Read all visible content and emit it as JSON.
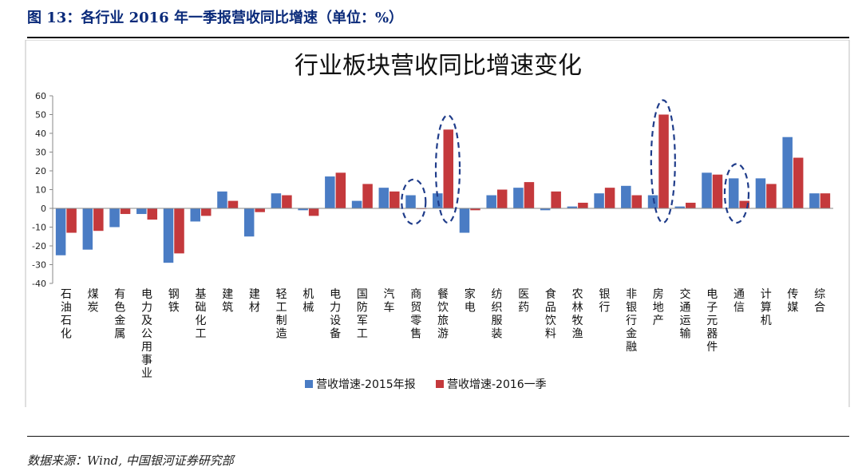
{
  "figure": {
    "caption": "图 13：各行业 2016 年一季报营收同比增速（单位：%）",
    "source": "数据来源：Wind, 中国银河证券研究部"
  },
  "chart_data": {
    "type": "bar",
    "title": "行业板块营收同比增速变化",
    "xlabel": "",
    "ylabel": "",
    "ylim": [
      -40,
      60
    ],
    "yticks": [
      60,
      50,
      40,
      30,
      20,
      10,
      0,
      -10,
      -20,
      -30,
      -40
    ],
    "grid": false,
    "legend_position": "bottom",
    "categories": [
      "石油石化",
      "煤炭",
      "有色金属",
      "电力及公用事业",
      "钢铁",
      "基础化工",
      "建筑",
      "建材",
      "轻工制造",
      "机械",
      "电力设备",
      "国防军工",
      "汽车",
      "商贸零售",
      "餐饮旅游",
      "家电",
      "纺织服装",
      "医药",
      "食品饮料",
      "农林牧渔",
      "银行",
      "非银行金融",
      "房地产",
      "交通运输",
      "电子元器件",
      "通信",
      "计算机",
      "传媒",
      "综合"
    ],
    "series": [
      {
        "name": "营收增速-2015年报",
        "color": "#4a7cc4",
        "values": [
          -25,
          -22,
          -10,
          -3,
          -29,
          -7,
          9,
          -15,
          8,
          -1,
          17,
          4,
          11,
          7,
          8,
          -13,
          7,
          11,
          -1,
          1,
          8,
          12,
          7,
          1,
          19,
          16,
          16,
          38,
          8
        ]
      },
      {
        "name": "营收增速-2016一季",
        "color": "#c4393c",
        "values": [
          -13,
          -12,
          -3,
          -6,
          -24,
          -4,
          4,
          -2,
          7,
          -4,
          19,
          13,
          9,
          0,
          42,
          -1,
          10,
          14,
          9,
          3,
          11,
          7,
          50,
          3,
          18,
          4,
          13,
          27,
          8
        ]
      }
    ],
    "highlighted_categories": [
      "商贸零售",
      "餐饮旅游",
      "房地产",
      "通信"
    ]
  }
}
